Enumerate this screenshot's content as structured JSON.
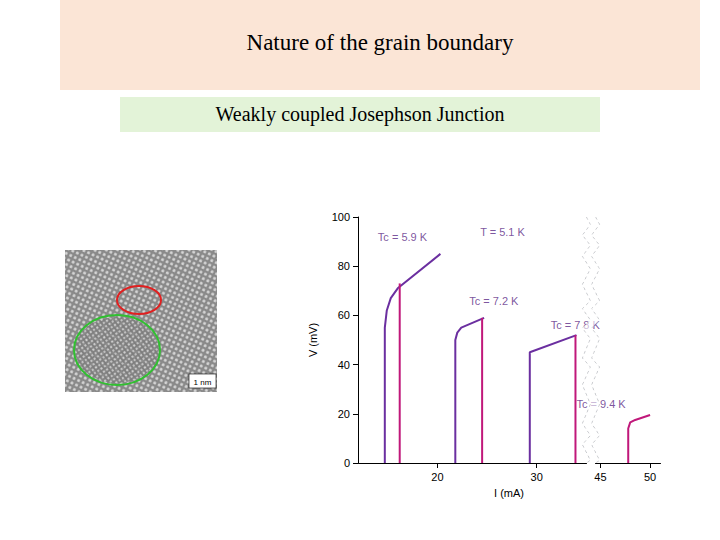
{
  "header": {
    "title": "Nature of the grain boundary",
    "subtitle": "Weakly coupled Josephson Junction"
  },
  "image": {
    "scale_label": "1 nm"
  },
  "chart_data": {
    "type": "line",
    "x_label": "I (mA)",
    "y_label": "V (mV)",
    "xlim": [
      12,
      51
    ],
    "xbreak": [
      35,
      44.5
    ],
    "xticks": [
      20,
      30,
      45,
      50
    ],
    "ylim": [
      0,
      100
    ],
    "yticks": [
      0,
      20,
      40,
      60,
      80,
      100
    ],
    "grid": false,
    "series": [
      {
        "color": "#6b2fa0",
        "x": [
          14.7,
          14.7,
          14.9,
          15.3,
          16.0,
          20.3
        ],
        "values": [
          0,
          55,
          62,
          67,
          71,
          85
        ]
      },
      {
        "color": "#c0187a",
        "x": [
          16.2,
          16.2
        ],
        "values": [
          73,
          0
        ]
      },
      {
        "color": "#6b2fa0",
        "x": [
          21.8,
          21.8,
          22.0,
          22.4,
          24.7
        ],
        "values": [
          0,
          50,
          53,
          55,
          59
        ]
      },
      {
        "color": "#c0187a",
        "x": [
          24.5,
          24.5
        ],
        "values": [
          59,
          0
        ]
      },
      {
        "color": "#6b2fa0",
        "x": [
          29.3,
          29.3,
          34.0
        ],
        "values": [
          0,
          45,
          52
        ]
      },
      {
        "color": "#c0187a",
        "x": [
          33.9,
          33.9
        ],
        "values": [
          52,
          0
        ]
      },
      {
        "color": "#c0187a",
        "x": [
          47.8,
          47.8,
          48.0,
          48.5,
          50.0
        ],
        "values": [
          0,
          14,
          16.5,
          17.5,
          19.5
        ]
      }
    ],
    "annotations": [
      {
        "text": "Tc = 5.9 K",
        "x": 14,
        "y": 92
      },
      {
        "text": "T = 5.1 K",
        "x": 24.3,
        "y": 94
      },
      {
        "text": "Tc = 7.2 K",
        "x": 23.2,
        "y": 66
      },
      {
        "text": "Tc = 7 8 K",
        "x": 31.4,
        "y": 56
      },
      {
        "text": "Tc = 9.4 K",
        "x": 34,
        "y": 24
      }
    ]
  }
}
